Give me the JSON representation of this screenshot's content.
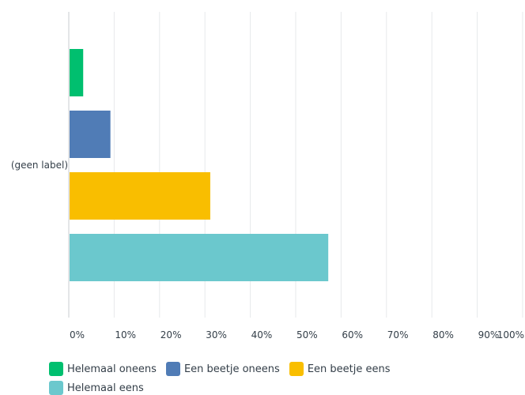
{
  "chart_data": {
    "type": "bar",
    "orientation": "horizontal",
    "categories": [
      "(geen label)"
    ],
    "series": [
      {
        "name": "Helemaal oneens",
        "values": [
          3
        ],
        "color": "#00bf6f"
      },
      {
        "name": "Een beetje oneens",
        "values": [
          9
        ],
        "color": "#507cb6"
      },
      {
        "name": "Een beetje eens",
        "values": [
          31
        ],
        "color": "#f9be00"
      },
      {
        "name": "Helemaal eens",
        "values": [
          57
        ],
        "color": "#6bc8cd"
      }
    ],
    "xlim": [
      0,
      100
    ],
    "x_ticks": [
      "0%",
      "10%",
      "20%",
      "30%",
      "40%",
      "50%",
      "60%",
      "70%",
      "80%",
      "90%",
      "100%"
    ],
    "title": "",
    "xlabel": "",
    "ylabel": "",
    "grid": true,
    "legend_position": "bottom"
  }
}
